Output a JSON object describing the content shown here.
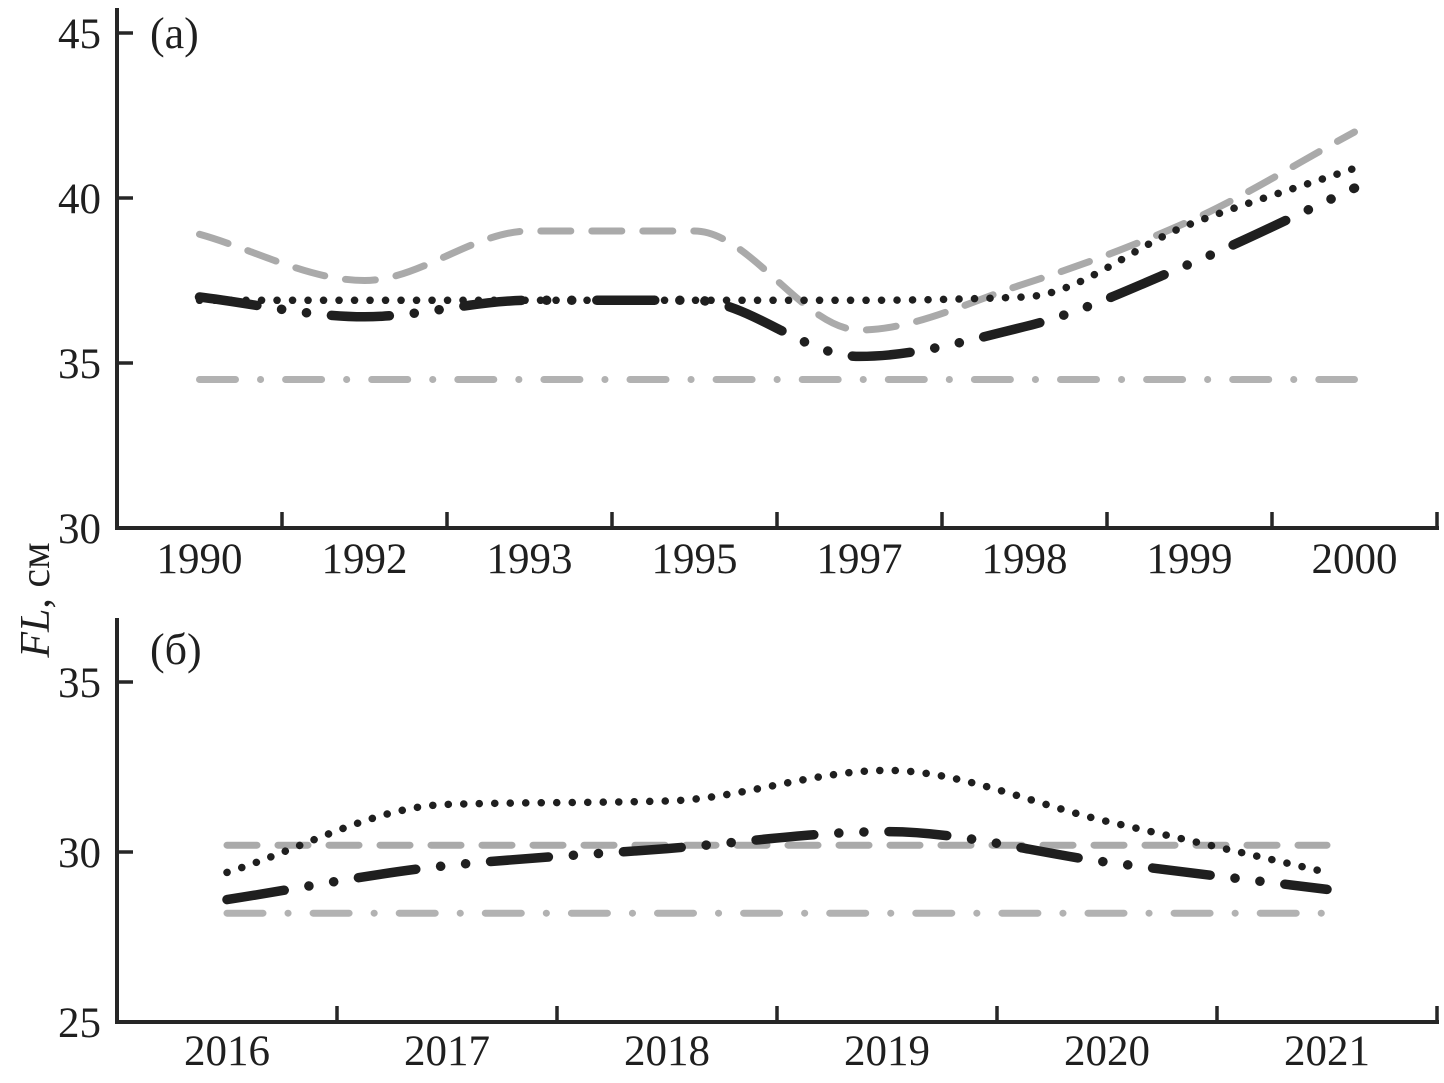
{
  "figure": {
    "y_axis_title_italic": "FL",
    "y_axis_title_rest": ", см",
    "panel_a_label": "(a)",
    "panel_b_label": "(б)"
  },
  "colors": {
    "black_line": "#1f1f1f",
    "gray_line": "#aaaaaa",
    "gray_dashdot_line": "#b2b2b2",
    "axis": "#262626",
    "background": "#ffffff"
  },
  "chart_data": [
    {
      "type": "line",
      "panel": "a",
      "panel_label": "(a)",
      "title": "",
      "xlabel": "",
      "ylabel": "FL, см",
      "categories": [
        "1990",
        "1992",
        "1993",
        "1995",
        "1997",
        "1998",
        "1999",
        "2000"
      ],
      "yticks": [
        30,
        35,
        40,
        45
      ],
      "ylim": [
        30,
        45.8
      ],
      "grid": false,
      "legend": "none",
      "series": [
        {
          "name": "gray-dashed",
          "style": "gray-dash",
          "values": [
            38.9,
            37.5,
            39.0,
            39.0,
            36.0,
            37.4,
            39.3,
            42.0
          ]
        },
        {
          "name": "gray-dash-dot",
          "style": "gray-dashdot",
          "values": [
            34.5,
            34.5,
            34.5,
            34.5,
            34.5,
            34.5,
            34.5,
            34.5
          ]
        },
        {
          "name": "black-dotted",
          "style": "black-dot",
          "values": [
            36.9,
            36.9,
            36.9,
            36.9,
            36.9,
            37.0,
            39.2,
            40.9
          ]
        },
        {
          "name": "black-dash-dot-dot",
          "style": "black-dashdotdot",
          "values": [
            37.0,
            36.4,
            36.9,
            36.9,
            35.2,
            36.1,
            38.0,
            40.3
          ]
        }
      ]
    },
    {
      "type": "line",
      "panel": "b",
      "panel_label": "(б)",
      "title": "",
      "xlabel": "",
      "ylabel": "FL, см",
      "categories": [
        "2016",
        "2017",
        "2018",
        "2019",
        "2020",
        "2021"
      ],
      "yticks": [
        25,
        30,
        35
      ],
      "ylim": [
        25,
        36.9
      ],
      "grid": false,
      "legend": "none",
      "series": [
        {
          "name": "gray-dashed",
          "style": "gray-dash",
          "values": [
            30.2,
            30.2,
            30.2,
            30.2,
            30.2,
            30.2
          ]
        },
        {
          "name": "gray-dash-dot",
          "style": "gray-dashdot",
          "values": [
            28.2,
            28.2,
            28.2,
            28.2,
            28.2,
            28.2
          ]
        },
        {
          "name": "black-dotted",
          "style": "black-dot",
          "values": [
            29.4,
            31.4,
            31.5,
            32.4,
            30.9,
            29.4
          ]
        },
        {
          "name": "black-dash-dot-dot",
          "style": "black-dashdotdot",
          "values": [
            28.6,
            29.6,
            30.1,
            30.6,
            29.7,
            28.9
          ]
        }
      ]
    }
  ]
}
